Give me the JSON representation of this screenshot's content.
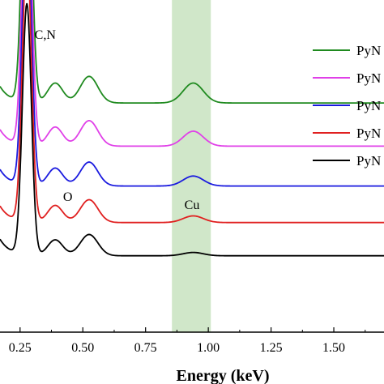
{
  "chart_data": {
    "type": "line",
    "xlabel": "Energy (keV)",
    "ylabel": "",
    "xlim": [
      0.17,
      1.7
    ],
    "x_ticks": [
      "0.25",
      "0.50",
      "0.75",
      "1.00",
      "1.25",
      "1.50"
    ],
    "x_tick_values": [
      0.25,
      0.5,
      0.75,
      1.0,
      1.25,
      1.5
    ],
    "highlight_band": {
      "x_range": [
        0.855,
        1.01
      ],
      "color": "#c8e3c0"
    },
    "annotations": [
      {
        "text": "C,N",
        "x": 0.35
      },
      {
        "text": "O",
        "x": 0.44
      },
      {
        "text": "Cu",
        "x": 0.935
      }
    ],
    "legend": {
      "placement": "top-right",
      "entries": [
        {
          "label": "PyN",
          "color": "#1f8a1f"
        },
        {
          "label": "PyN",
          "color": "#e040e8"
        },
        {
          "label": "PyN",
          "color": "#1a1adf"
        },
        {
          "label": "PyN",
          "color": "#e02020"
        },
        {
          "label": "PyN",
          "color": "#000000"
        }
      ]
    },
    "series": [
      {
        "color": "#1f8a1f",
        "baseline": 0.69,
        "scale": 1.0,
        "cu": 0.06
      },
      {
        "color": "#e040e8",
        "baseline": 0.56,
        "scale": 0.96,
        "cu": 0.045
      },
      {
        "color": "#1a1adf",
        "baseline": 0.44,
        "scale": 0.9,
        "cu": 0.03
      },
      {
        "color": "#e02020",
        "baseline": 0.33,
        "scale": 0.86,
        "cu": 0.02
      },
      {
        "color": "#000000",
        "baseline": 0.23,
        "scale": 0.8,
        "cu": 0.01
      }
    ]
  }
}
